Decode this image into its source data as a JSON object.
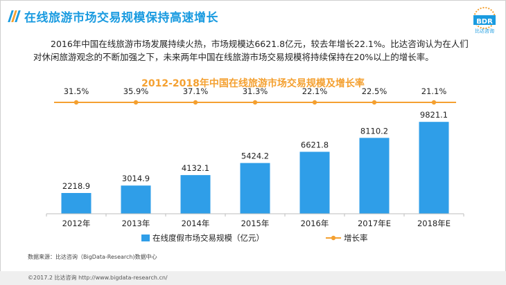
{
  "header": {
    "title": "在线旅游市场交易规模保持高速增长",
    "logo_text": "BDR",
    "logo_sub": "比达咨询",
    "accent": "#1a9be0"
  },
  "intro": {
    "text": "2016年中国在线旅游市场发展持续火热，市场规模达6621.8亿元，较去年增长22.1%。比达咨询认为在人们对休闲旅游观念的不断加强之下，未来两年中国在线旅游市场交易规模将持续保持在20%以上的增长率。"
  },
  "chart_data": {
    "type": "bar",
    "title": "2012-2018年中国在线旅游市场交易规模及增长率",
    "categories": [
      "2012年",
      "2013年",
      "2014年",
      "2015年",
      "2016年",
      "2017年E",
      "2018年E"
    ],
    "series": [
      {
        "name": "在线度假市场交易规模（亿元）",
        "type": "bar",
        "color": "#2f9ee8",
        "values": [
          2218.9,
          3014.9,
          4132.1,
          5424.2,
          6621.8,
          8110.2,
          9821.1
        ],
        "labels": [
          "2218.9",
          "3014.9",
          "4132.1",
          "5424.2",
          "6621.8",
          "8110.2",
          "9821.1"
        ]
      },
      {
        "name": "增长率",
        "type": "line",
        "color": "#f4a030",
        "values": [
          31.5,
          35.9,
          37.1,
          31.3,
          22.1,
          22.5,
          21.1
        ],
        "labels": [
          "31.5%",
          "35.9%",
          "37.1%",
          "31.3%",
          "22.1%",
          "22.5%",
          "21.1%"
        ]
      }
    ],
    "ylim": [
      0,
      10500
    ],
    "grid": false,
    "legend": "bottom-center"
  },
  "source_note": "数据来源：比达咨询（BigData-Research)数据中心",
  "footer": {
    "text": "©2017.2  比达咨询  http://www.bigdata-research.cn/"
  }
}
